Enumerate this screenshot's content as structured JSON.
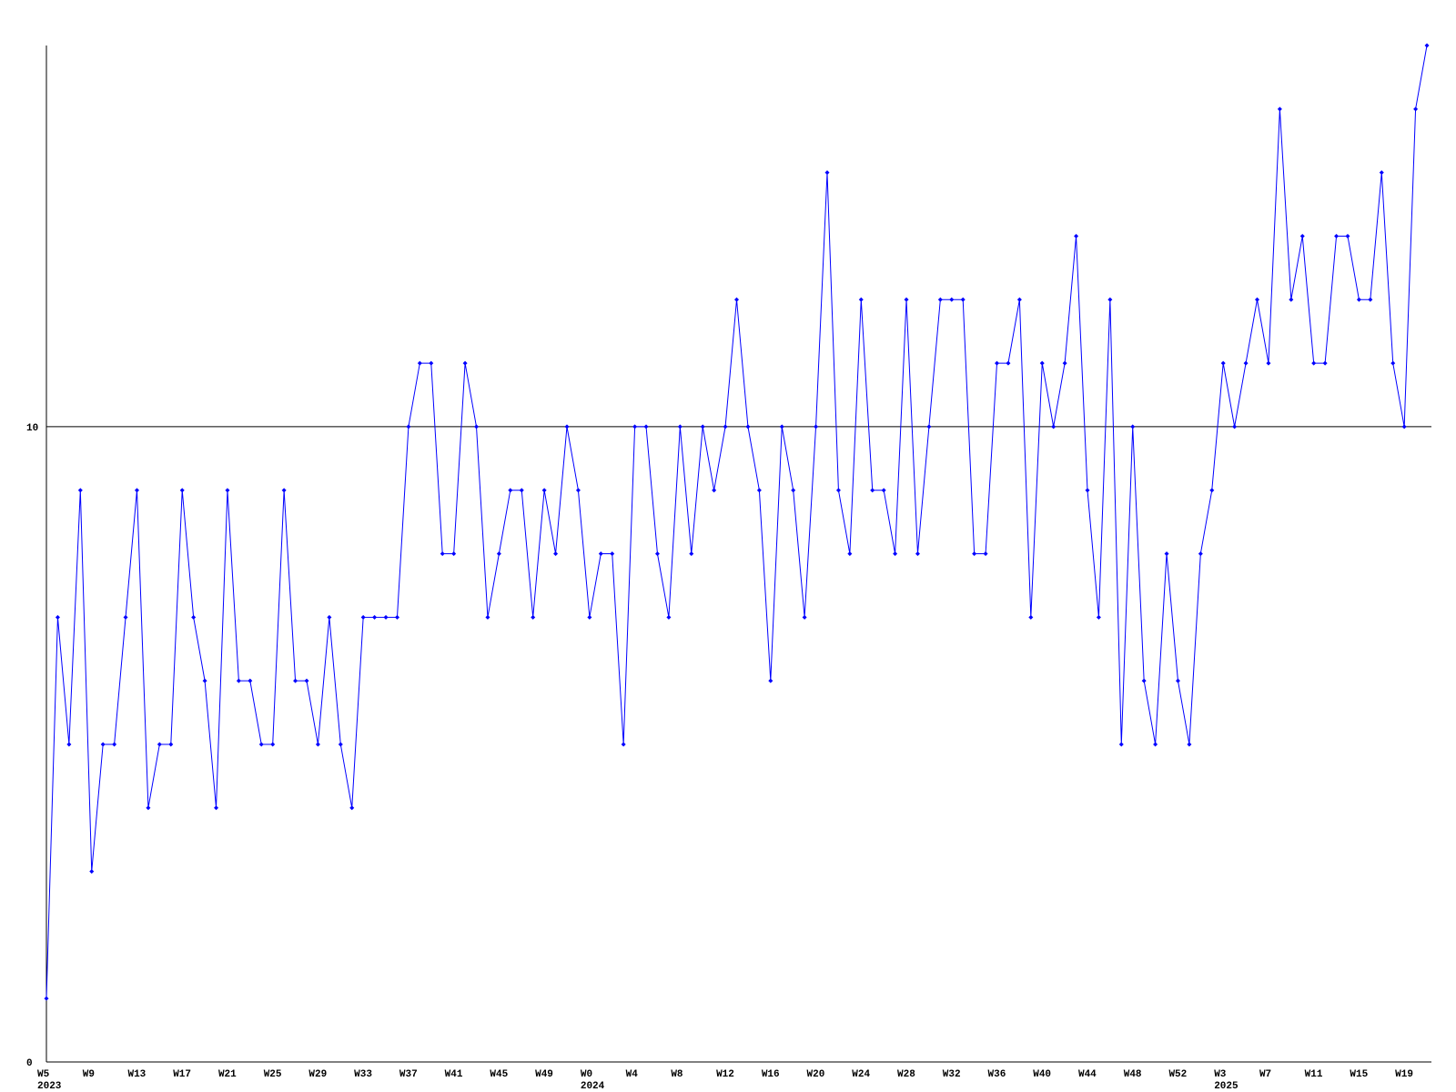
{
  "chart_data": {
    "type": "line",
    "color": "#0000ff",
    "marker_color": "#0000ff",
    "grid": true,
    "ylim": [
      0,
      16
    ],
    "yticks": [
      0,
      10
    ],
    "categories": [
      "W5",
      null,
      null,
      null,
      "W9",
      null,
      null,
      null,
      "W13",
      null,
      null,
      null,
      "W17",
      null,
      null,
      null,
      "W21",
      null,
      null,
      null,
      "W25",
      null,
      null,
      null,
      "W29",
      null,
      null,
      null,
      "W33",
      null,
      null,
      null,
      "W37",
      null,
      null,
      null,
      "W41",
      null,
      null,
      null,
      "W45",
      null,
      null,
      null,
      "W49",
      null,
      null,
      null,
      "W0",
      null,
      null,
      null,
      "W4",
      null,
      null,
      null,
      "W8",
      null,
      null,
      null,
      "W12",
      null,
      null,
      null,
      "W16",
      null,
      null,
      null,
      "W20",
      null,
      null,
      null,
      "W24",
      null,
      null,
      null,
      "W28",
      null,
      null,
      null,
      "W32",
      null,
      null,
      null,
      "W36",
      null,
      null,
      null,
      "W40",
      null,
      null,
      null,
      "W44",
      null,
      null,
      null,
      "W48",
      null,
      null,
      null,
      "W52",
      null,
      null,
      null,
      "W3",
      null,
      null,
      null,
      "W7",
      null,
      null,
      null,
      "W11",
      null,
      null,
      null,
      "W15",
      null,
      null,
      null,
      "W19",
      null,
      null
    ],
    "years": [
      "2023",
      null,
      null,
      null,
      null,
      null,
      null,
      null,
      null,
      null,
      null,
      null,
      null,
      null,
      null,
      null,
      null,
      null,
      null,
      null,
      null,
      null,
      null,
      null,
      null,
      null,
      null,
      null,
      null,
      null,
      null,
      null,
      null,
      null,
      null,
      null,
      null,
      null,
      null,
      null,
      null,
      null,
      null,
      null,
      null,
      null,
      null,
      null,
      "2024",
      null,
      null,
      null,
      null,
      null,
      null,
      null,
      null,
      null,
      null,
      null,
      null,
      null,
      null,
      null,
      null,
      null,
      null,
      null,
      null,
      null,
      null,
      null,
      null,
      null,
      null,
      null,
      null,
      null,
      null,
      null,
      null,
      null,
      null,
      null,
      null,
      null,
      null,
      null,
      null,
      null,
      null,
      null,
      null,
      null,
      null,
      null,
      null,
      null,
      null,
      null,
      null,
      null,
      null,
      null,
      "2025",
      null,
      null,
      null,
      null,
      null,
      null,
      null,
      null,
      null,
      null,
      null,
      null,
      null,
      null,
      null,
      null,
      null
    ],
    "values": [
      1,
      7,
      5,
      9,
      3,
      5,
      5,
      7,
      9,
      4,
      5,
      5,
      9,
      7,
      6,
      4,
      9,
      6,
      6,
      5,
      5,
      9,
      6,
      6,
      5,
      7,
      5,
      4,
      7,
      7,
      7,
      7,
      10,
      11,
      11,
      8,
      8,
      11,
      10,
      7,
      8,
      9,
      9,
      7,
      9,
      8,
      10,
      9,
      7,
      8,
      8,
      5,
      10,
      10,
      8,
      7,
      10,
      8,
      10,
      9,
      10,
      12,
      10,
      9,
      6,
      10,
      9,
      7,
      10,
      14,
      9,
      8,
      12,
      9,
      9,
      8,
      12,
      8,
      10,
      12,
      12,
      12,
      8,
      8,
      11,
      11,
      12,
      7,
      11,
      10,
      11,
      13,
      9,
      7,
      12,
      5,
      10,
      6,
      5,
      8,
      6,
      5,
      8,
      9,
      11,
      10,
      11,
      12,
      11,
      15,
      12,
      13,
      11,
      11,
      13,
      13,
      12,
      12,
      14,
      11,
      10,
      15,
      16
    ]
  }
}
